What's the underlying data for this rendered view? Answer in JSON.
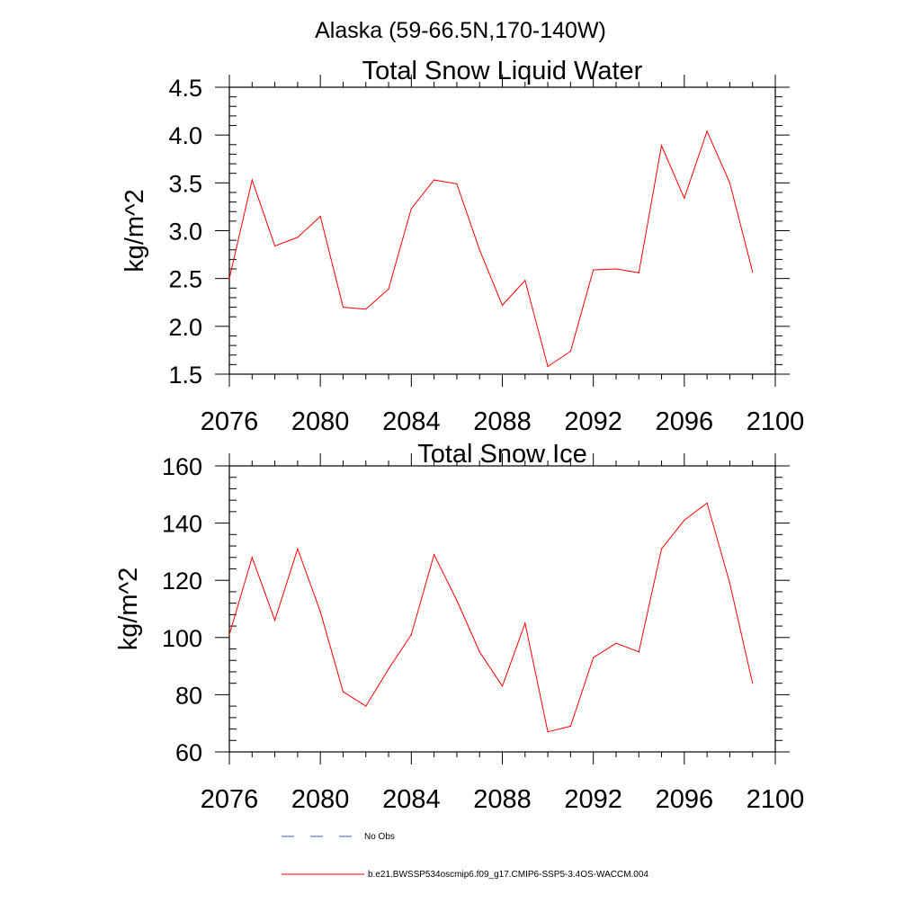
{
  "suptitle": "Alaska (59-66.5N,170-140W)",
  "colors": {
    "series": "#ff0000",
    "obs": "#4a56a8",
    "axis": "#000000"
  },
  "chart_data": [
    {
      "type": "line",
      "title": "Total Snow Liquid Water",
      "xlabel": "",
      "ylabel": "kg/m^2",
      "xlim": [
        2076,
        2100
      ],
      "ylim": [
        1.5,
        4.5
      ],
      "x_ticks": [
        2076,
        2080,
        2084,
        2088,
        2092,
        2096,
        2100
      ],
      "x_tick_labels": [
        "2076",
        "2080",
        "2084",
        "2088",
        "2092",
        "2096",
        "2100"
      ],
      "y_ticks": [
        1.5,
        2.0,
        2.5,
        3.0,
        3.5,
        4.0,
        4.5
      ],
      "y_tick_labels": [
        "1.5",
        "2.0",
        "2.5",
        "3.0",
        "3.5",
        "4.0",
        "4.5"
      ],
      "series": [
        {
          "name": "b.e21.BWSSP534oscmip6.f09_g17.CMIP6-SSP5-3.4OS-WACCM.004",
          "x": [
            2076,
            2077,
            2078,
            2079,
            2080,
            2081,
            2082,
            2083,
            2084,
            2085,
            2086,
            2087,
            2088,
            2089,
            2090,
            2091,
            2092,
            2093,
            2094,
            2095,
            2096,
            2097,
            2098,
            2099
          ],
          "values": [
            2.5,
            3.53,
            2.84,
            2.93,
            3.15,
            2.2,
            2.18,
            2.39,
            3.23,
            3.53,
            3.49,
            2.8,
            2.22,
            2.48,
            1.58,
            1.74,
            2.59,
            2.6,
            2.56,
            3.89,
            3.34,
            4.04,
            3.5,
            2.57
          ]
        }
      ]
    },
    {
      "type": "line",
      "title": "Total Snow Ice",
      "xlabel": "",
      "ylabel": "kg/m^2",
      "xlim": [
        2076,
        2100
      ],
      "ylim": [
        60,
        160
      ],
      "x_ticks": [
        2076,
        2080,
        2084,
        2088,
        2092,
        2096,
        2100
      ],
      "x_tick_labels": [
        "2076",
        "2080",
        "2084",
        "2088",
        "2092",
        "2096",
        "2100"
      ],
      "y_ticks": [
        60,
        80,
        100,
        120,
        140,
        160
      ],
      "y_tick_labels": [
        "60",
        "80",
        "100",
        "120",
        "140",
        "160"
      ],
      "series": [
        {
          "name": "b.e21.BWSSP534oscmip6.f09_g17.CMIP6-SSP5-3.4OS-WACCM.004",
          "x": [
            2076,
            2077,
            2078,
            2079,
            2080,
            2081,
            2082,
            2083,
            2084,
            2085,
            2086,
            2087,
            2088,
            2089,
            2090,
            2091,
            2092,
            2093,
            2094,
            2095,
            2096,
            2097,
            2098,
            2099
          ],
          "values": [
            101,
            128,
            106,
            131,
            109,
            81,
            76,
            89,
            101,
            129,
            113,
            95,
            83,
            105,
            67,
            69,
            93,
            98,
            95,
            131,
            141,
            147,
            119,
            84
          ]
        }
      ]
    }
  ],
  "legend": [
    {
      "label": "No Obs",
      "style": "dashed"
    },
    {
      "label": "b.e21.BWSSP534oscmip6.f09_g17.CMIP6-SSP5-3.4OS-WACCM.004",
      "style": "solid"
    }
  ]
}
